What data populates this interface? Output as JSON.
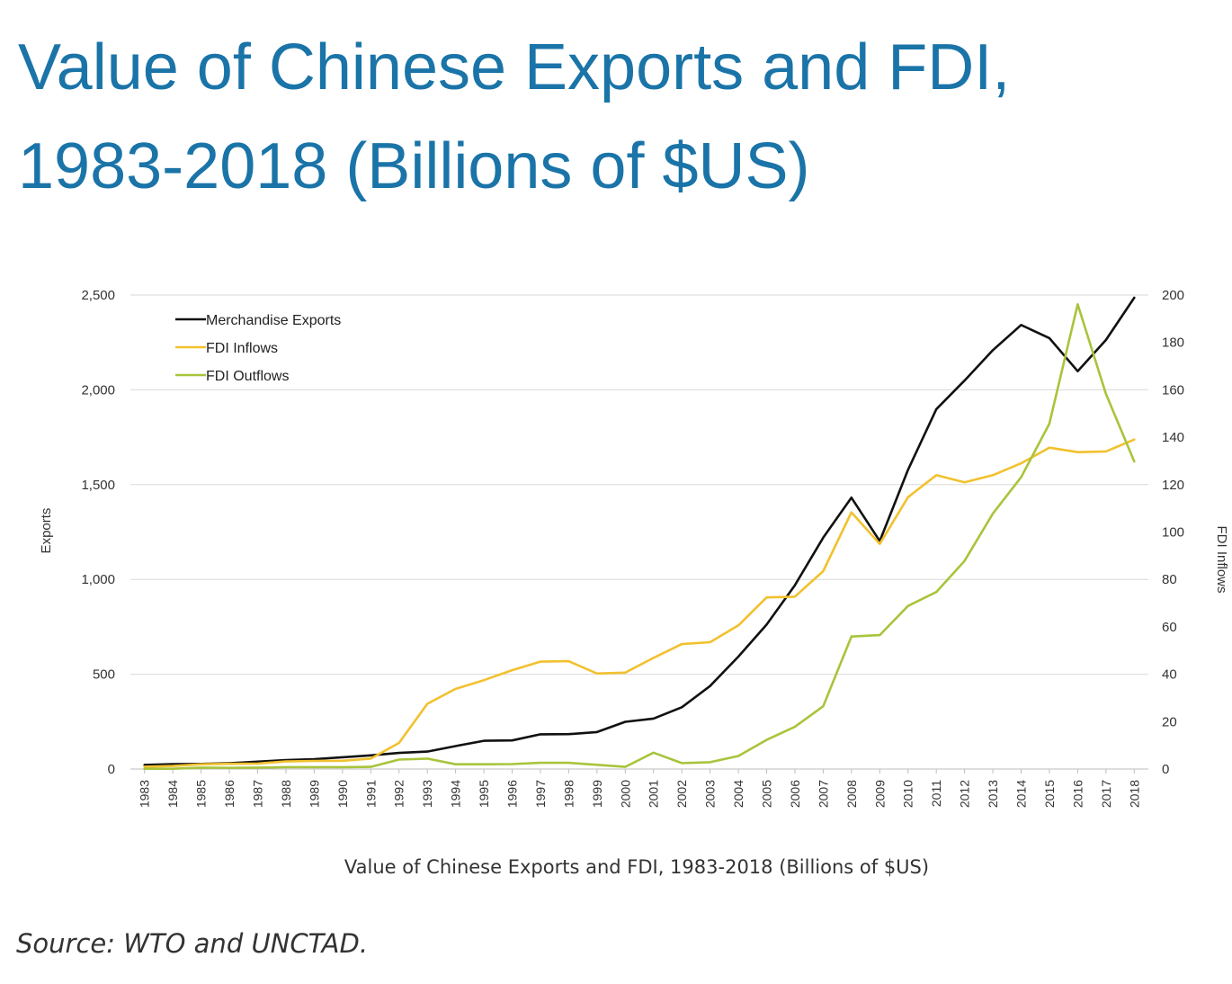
{
  "title": {
    "line1": "Value of Chinese Exports and FDI,",
    "line2": "1983-2018 (Billions of $US)"
  },
  "caption": "Value of Chinese Exports and FDI, 1983-2018 (Billions of $US)",
  "source": "Source: WTO and UNCTAD.",
  "chart_data": {
    "type": "line",
    "title": "",
    "xlabel": "",
    "ylabel": "Exports",
    "y2label": "FDI Inflows",
    "ylim": [
      0,
      2500
    ],
    "y2lim": [
      0,
      200
    ],
    "yticks": [
      "0",
      "500",
      "1,000",
      "1,500",
      "2,000",
      "2,500"
    ],
    "y2ticks": [
      "0",
      "20",
      "40",
      "60",
      "80",
      "100",
      "120",
      "140",
      "160",
      "180",
      "200"
    ],
    "grid": true,
    "legend_position": "top-left",
    "x": [
      "1983",
      "1984",
      "1985",
      "1986",
      "1987",
      "1988",
      "1989",
      "1990",
      "1991",
      "1992",
      "1993",
      "1994",
      "1995",
      "1996",
      "1997",
      "1998",
      "1999",
      "2000",
      "2001",
      "2002",
      "2003",
      "2004",
      "2005",
      "2006",
      "2007",
      "2008",
      "2009",
      "2010",
      "2011",
      "2012",
      "2013",
      "2014",
      "2015",
      "2016",
      "2017",
      "2018"
    ],
    "series": [
      {
        "name": "Merchandise Exports",
        "axis": "left",
        "color": "#111111",
        "values": [
          22,
          26,
          27,
          31,
          39,
          47,
          52,
          62,
          72,
          85,
          92,
          121,
          149,
          151,
          183,
          184,
          195,
          249,
          266,
          326,
          438,
          593,
          762,
          969,
          1220,
          1431,
          1202,
          1578,
          1898,
          2049,
          2209,
          2342,
          2273,
          2098,
          2263,
          2486
        ]
      },
      {
        "name": "FDI Inflows",
        "axis": "right",
        "color": "#f2c12e",
        "values": [
          1,
          1.3,
          2,
          2.2,
          2.3,
          3.2,
          3.4,
          3.5,
          4.4,
          11,
          27.5,
          33.8,
          37.5,
          41.7,
          45.3,
          45.5,
          40.3,
          40.7,
          46.9,
          52.7,
          53.5,
          60.6,
          72.4,
          72.7,
          83.5,
          108.3,
          95,
          114.7,
          124,
          121,
          124,
          129,
          135.6,
          133.7,
          134,
          139
        ]
      },
      {
        "name": "FDI Outflows",
        "axis": "right",
        "color": "#a8c43c",
        "values": [
          0.1,
          0.1,
          0.6,
          0.5,
          0.6,
          0.8,
          0.8,
          0.8,
          0.9,
          4,
          4.4,
          2,
          2,
          2.1,
          2.6,
          2.6,
          1.8,
          0.9,
          6.9,
          2.5,
          2.9,
          5.5,
          12.3,
          17.8,
          26.5,
          55.9,
          56.5,
          68.8,
          74.7,
          87.8,
          107.8,
          123.1,
          145.7,
          196.1,
          158.3,
          129.8
        ]
      }
    ]
  }
}
